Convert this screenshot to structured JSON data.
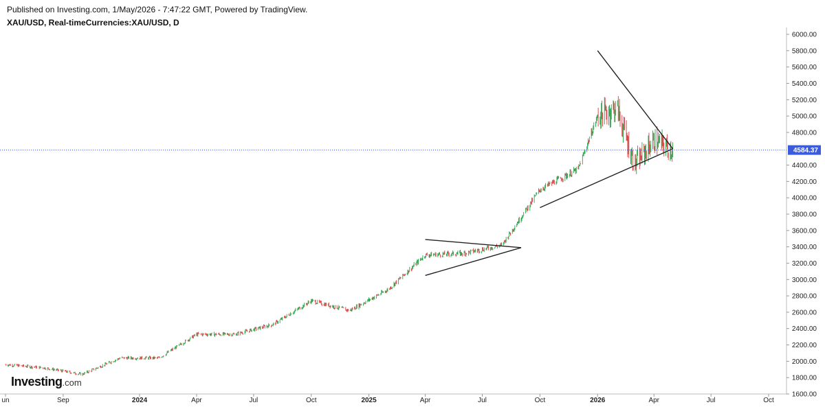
{
  "header": {
    "published": "Published on Investing.com, 1/May/2026 - 7:47:22 GMT, Powered by TradingView.",
    "symbol": "XAU/USD, Real-timeCurrencies:XAU/USD, D"
  },
  "logo": {
    "brand": "Investing",
    "suffix": ".com"
  },
  "colors": {
    "up": "#22a447",
    "down": "#e0383e",
    "price_line": "#3b5bdb",
    "trendline": "#222222"
  },
  "chart_data": {
    "type": "candlestick",
    "title": "XAU/USD, Real-timeCurrencies:XAU/USD, D",
    "x_ticks": [
      "un",
      "Sep",
      "2024",
      "Apr",
      "Jul",
      "Oct",
      "2025",
      "Apr",
      "Jul",
      "Oct",
      "2026",
      "Apr",
      "Jul",
      "Oct"
    ],
    "y_ticks": [
      "1600.00",
      "1800.00",
      "2000.00",
      "2200.00",
      "2400.00",
      "2600.00",
      "2800.00",
      "3000.00",
      "3200.00",
      "3400.00",
      "3600.00",
      "3800.00",
      "4000.00",
      "4200.00",
      "4400.00",
      "4800.00",
      "5000.00",
      "5200.00",
      "5400.00",
      "5600.00",
      "5800.00",
      "6000.00"
    ],
    "ylim": [
      1600,
      6000
    ],
    "last_price": "4584.37",
    "last_price_value": 4584.37,
    "series_approx_close": [
      {
        "date": "2023-06",
        "value": 1960
      },
      {
        "date": "2023-08",
        "value": 1920
      },
      {
        "date": "2023-10",
        "value": 1840
      },
      {
        "date": "2023-12",
        "value": 2040
      },
      {
        "date": "2024-02",
        "value": 2040
      },
      {
        "date": "2024-04",
        "value": 2330
      },
      {
        "date": "2024-06",
        "value": 2330
      },
      {
        "date": "2024-08",
        "value": 2450
      },
      {
        "date": "2024-10",
        "value": 2740
      },
      {
        "date": "2024-12",
        "value": 2620
      },
      {
        "date": "2025-02",
        "value": 2880
      },
      {
        "date": "2025-04",
        "value": 3300
      },
      {
        "date": "2025-06",
        "value": 3320
      },
      {
        "date": "2025-08",
        "value": 3420
      },
      {
        "date": "2025-10",
        "value": 4100
      },
      {
        "date": "2025-12",
        "value": 4350
      },
      {
        "date": "2026-01",
        "value": 5000
      },
      {
        "date": "2026-02",
        "value": 5100
      },
      {
        "date": "2026-03",
        "value": 4400
      },
      {
        "date": "2026-04",
        "value": 4700
      },
      {
        "date": "2026-05",
        "value": 4584
      }
    ],
    "trendlines": [
      {
        "name": "triangle-2025-upper",
        "from": {
          "date": "2025-04",
          "value": 3490
        },
        "to": {
          "date": "2025-09",
          "value": 3390
        }
      },
      {
        "name": "triangle-2025-lower",
        "from": {
          "date": "2025-04",
          "value": 3050
        },
        "to": {
          "date": "2025-09",
          "value": 3390
        }
      },
      {
        "name": "triangle-2026-upper",
        "from": {
          "date": "2026-01",
          "value": 5800
        },
        "to": {
          "date": "2026-05",
          "value": 4600
        }
      },
      {
        "name": "triangle-2026-lower",
        "from": {
          "date": "2025-10",
          "value": 3880
        },
        "to": {
          "date": "2026-05",
          "value": 4600
        }
      }
    ]
  }
}
